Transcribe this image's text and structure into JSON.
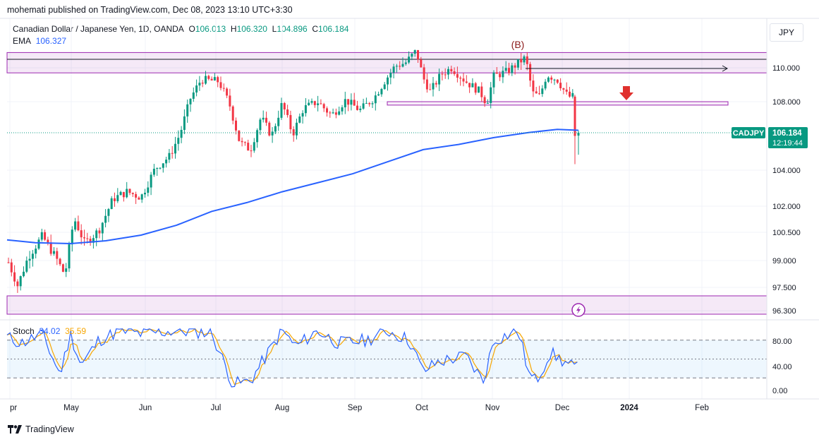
{
  "header": {
    "publisher": "mohemati published on TradingView.com, Dec 08, 2023 13:10 UTC+3:30",
    "symbol_title": "Canadian Dollar / Japanese Yen, 1D, OANDA",
    "ohlc": {
      "o_label": "O",
      "o": "106.013",
      "h_label": "H",
      "h": "106.320",
      "l_label": "L",
      "l": "104.896",
      "c_label": "C",
      "c": "106.184"
    },
    "ema_label": "EMA",
    "ema_value": "106.327",
    "currency_button": "JPY"
  },
  "stoch": {
    "label": "Stoch",
    "k": "34.02",
    "d": "35.59"
  },
  "footer": {
    "brand": "TradingView"
  },
  "price_tag": {
    "symbol": "CADJPY",
    "price": "106.184",
    "countdown": "12:19:44"
  },
  "annotations": {
    "wave_label": "(B)"
  },
  "colors": {
    "up": "#089981",
    "down": "#f23645",
    "ema": "#2962ff",
    "zone": "#9c27b0",
    "k_line": "#2962ff",
    "d_line": "#f7a600",
    "arrow": "#e0302d"
  },
  "chart_data": [
    {
      "type": "candlestick",
      "title": "Canadian Dollar / Japanese Yen, 1D, OANDA",
      "y_tick_labels": [
        "110.000",
        "108.000",
        "104.000",
        "102.000",
        "100.500",
        "99.000",
        "97.500",
        "96.300"
      ],
      "x_tick_labels": [
        "pr",
        "May",
        "Jun",
        "Jul",
        "Aug",
        "Sep",
        "Oct",
        "Nov",
        "Dec",
        "2024",
        "Feb"
      ],
      "ylim": [
        96.3,
        111.2
      ],
      "last_price": 106.184,
      "ema_last": 106.327,
      "resistance_zone": [
        109.7,
        110.9
      ],
      "resistance_line": 110.5,
      "support_zone_low": [
        95.9,
        97.1
      ],
      "support_box": [
        107.8,
        108.0
      ],
      "annotations": [
        "(B)",
        "down arrow",
        "horizontal ray from top"
      ]
    },
    {
      "type": "line",
      "title": "Stoch",
      "series": [
        {
          "name": "%K",
          "last": 34.02
        },
        {
          "name": "%D",
          "last": 35.59
        }
      ],
      "y_tick_labels": [
        "80.00",
        "40.00",
        "0.00"
      ],
      "levels": [
        80,
        50,
        20
      ],
      "ylim": [
        0,
        100
      ]
    }
  ]
}
